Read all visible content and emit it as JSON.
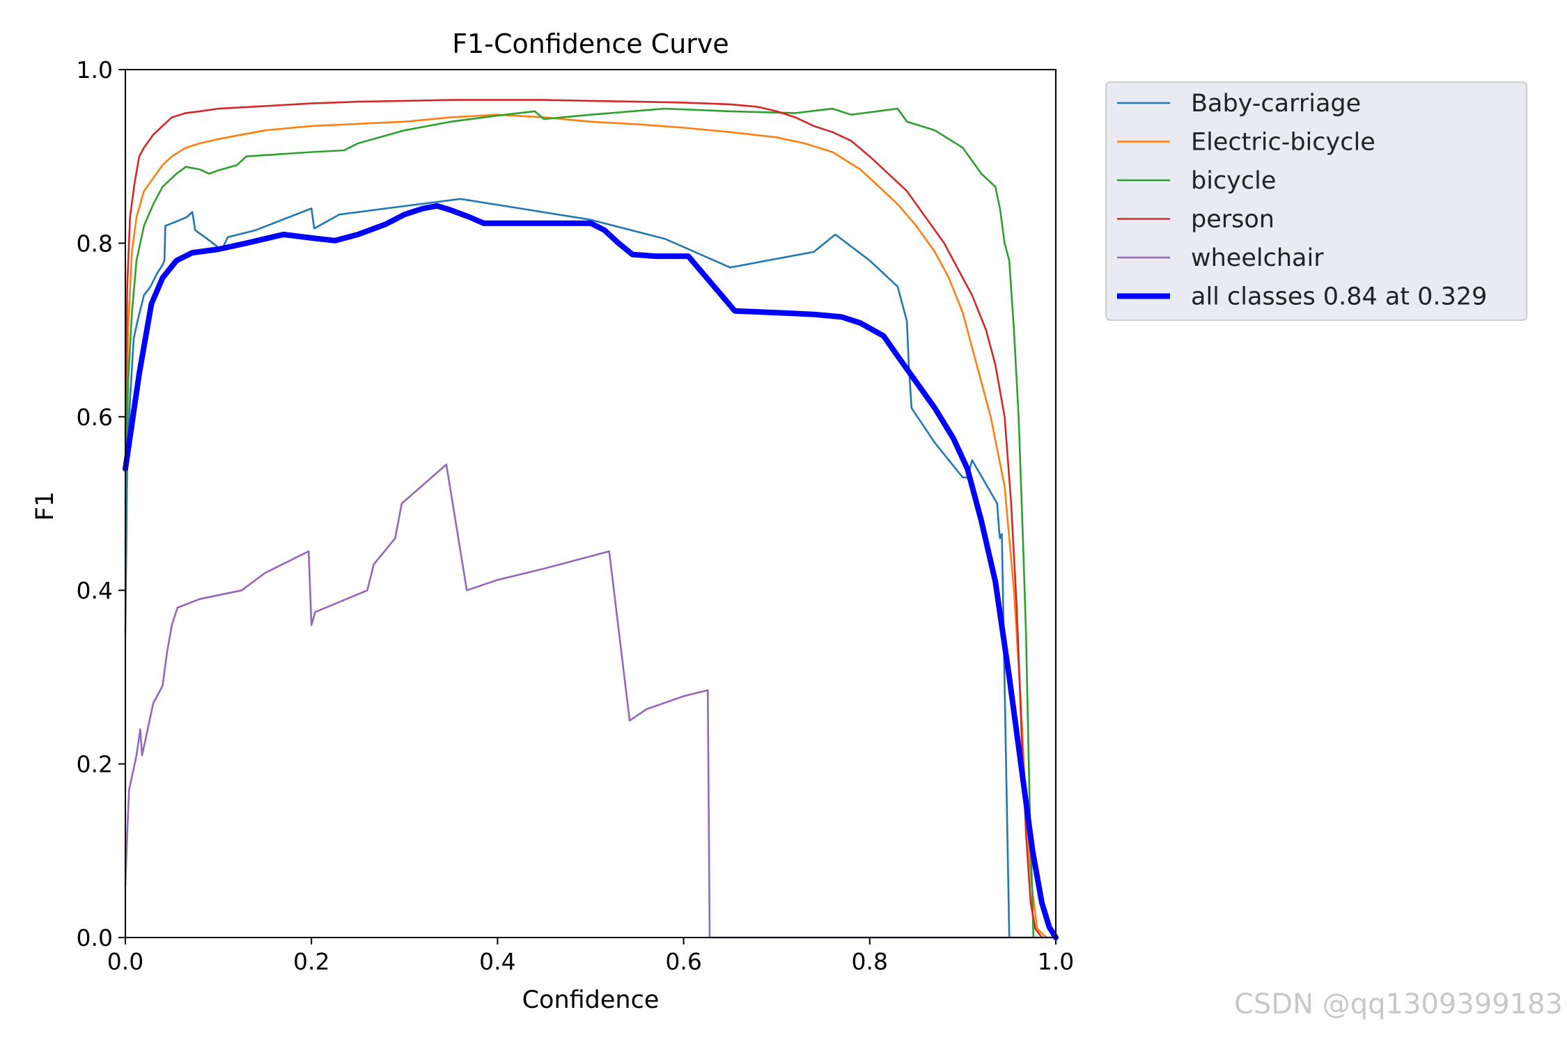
{
  "chart_data": {
    "type": "line",
    "title": "F1-Confidence Curve",
    "xlabel": "Confidence",
    "ylabel": "F1",
    "xlim": [
      0,
      1
    ],
    "ylim": [
      0,
      1
    ],
    "xticks": [
      0.0,
      0.2,
      0.4,
      0.6,
      0.8,
      1.0
    ],
    "yticks": [
      0.0,
      0.2,
      0.4,
      0.6,
      0.8,
      1.0
    ],
    "tick_labels_x": [
      "0.0",
      "0.2",
      "0.4",
      "0.6",
      "0.8",
      "1.0"
    ],
    "tick_labels_y": [
      "0.0",
      "0.2",
      "0.4",
      "0.6",
      "0.8",
      "1.0"
    ],
    "grid": false,
    "legend_position": "outside-top-right",
    "series": [
      {
        "name": "Baby-carriage",
        "color": "#1f77b4",
        "width": "thin",
        "points": [
          [
            0.0,
            0.35
          ],
          [
            0.002,
            0.55
          ],
          [
            0.005,
            0.62
          ],
          [
            0.009,
            0.69
          ],
          [
            0.013,
            0.71
          ],
          [
            0.02,
            0.74
          ],
          [
            0.027,
            0.75
          ],
          [
            0.034,
            0.765
          ],
          [
            0.04,
            0.775
          ],
          [
            0.042,
            0.78
          ],
          [
            0.043,
            0.82
          ],
          [
            0.055,
            0.825
          ],
          [
            0.066,
            0.83
          ],
          [
            0.072,
            0.836
          ],
          [
            0.075,
            0.815
          ],
          [
            0.088,
            0.805
          ],
          [
            0.1,
            0.795
          ],
          [
            0.104,
            0.793
          ],
          [
            0.11,
            0.807
          ],
          [
            0.14,
            0.815
          ],
          [
            0.2,
            0.84
          ],
          [
            0.203,
            0.817
          ],
          [
            0.23,
            0.833
          ],
          [
            0.28,
            0.84
          ],
          [
            0.36,
            0.851
          ],
          [
            0.5,
            0.827
          ],
          [
            0.58,
            0.805
          ],
          [
            0.65,
            0.772
          ],
          [
            0.74,
            0.79
          ],
          [
            0.763,
            0.81
          ],
          [
            0.8,
            0.78
          ],
          [
            0.83,
            0.75
          ],
          [
            0.84,
            0.71
          ],
          [
            0.842,
            0.66
          ],
          [
            0.845,
            0.61
          ],
          [
            0.87,
            0.57
          ],
          [
            0.9,
            0.53
          ],
          [
            0.905,
            0.53
          ],
          [
            0.91,
            0.55
          ],
          [
            0.937,
            0.5
          ],
          [
            0.939,
            0.47
          ],
          [
            0.94,
            0.46
          ],
          [
            0.942,
            0.465
          ],
          [
            0.95,
            0.0
          ]
        ]
      },
      {
        "name": "Electric-bicycle",
        "color": "#ff7f0e",
        "width": "thin",
        "points": [
          [
            0.0,
            0.55
          ],
          [
            0.003,
            0.7
          ],
          [
            0.007,
            0.79
          ],
          [
            0.012,
            0.83
          ],
          [
            0.02,
            0.86
          ],
          [
            0.03,
            0.875
          ],
          [
            0.04,
            0.89
          ],
          [
            0.05,
            0.9
          ],
          [
            0.065,
            0.91
          ],
          [
            0.08,
            0.915
          ],
          [
            0.1,
            0.92
          ],
          [
            0.15,
            0.93
          ],
          [
            0.2,
            0.935
          ],
          [
            0.3,
            0.94
          ],
          [
            0.35,
            0.945
          ],
          [
            0.4,
            0.948
          ],
          [
            0.45,
            0.945
          ],
          [
            0.5,
            0.94
          ],
          [
            0.55,
            0.937
          ],
          [
            0.6,
            0.933
          ],
          [
            0.65,
            0.928
          ],
          [
            0.7,
            0.922
          ],
          [
            0.73,
            0.915
          ],
          [
            0.76,
            0.905
          ],
          [
            0.79,
            0.885
          ],
          [
            0.81,
            0.865
          ],
          [
            0.83,
            0.845
          ],
          [
            0.85,
            0.82
          ],
          [
            0.87,
            0.79
          ],
          [
            0.885,
            0.76
          ],
          [
            0.9,
            0.72
          ],
          [
            0.915,
            0.66
          ],
          [
            0.93,
            0.6
          ],
          [
            0.945,
            0.52
          ],
          [
            0.955,
            0.4
          ],
          [
            0.962,
            0.28
          ],
          [
            0.968,
            0.15
          ],
          [
            0.974,
            0.06
          ],
          [
            0.98,
            0.01
          ],
          [
            0.99,
            0.0
          ]
        ]
      },
      {
        "name": "bicycle",
        "color": "#2ca02c",
        "width": "thin",
        "points": [
          [
            0.0,
            0.5
          ],
          [
            0.003,
            0.64
          ],
          [
            0.007,
            0.72
          ],
          [
            0.012,
            0.78
          ],
          [
            0.02,
            0.82
          ],
          [
            0.03,
            0.845
          ],
          [
            0.04,
            0.865
          ],
          [
            0.055,
            0.88
          ],
          [
            0.065,
            0.888
          ],
          [
            0.08,
            0.885
          ],
          [
            0.09,
            0.88
          ],
          [
            0.1,
            0.884
          ],
          [
            0.12,
            0.89
          ],
          [
            0.13,
            0.9
          ],
          [
            0.2,
            0.905
          ],
          [
            0.235,
            0.907
          ],
          [
            0.25,
            0.915
          ],
          [
            0.3,
            0.93
          ],
          [
            0.35,
            0.94
          ],
          [
            0.4,
            0.947
          ],
          [
            0.44,
            0.952
          ],
          [
            0.45,
            0.943
          ],
          [
            0.5,
            0.948
          ],
          [
            0.58,
            0.955
          ],
          [
            0.65,
            0.952
          ],
          [
            0.72,
            0.95
          ],
          [
            0.76,
            0.955
          ],
          [
            0.78,
            0.948
          ],
          [
            0.83,
            0.955
          ],
          [
            0.84,
            0.94
          ],
          [
            0.87,
            0.93
          ],
          [
            0.9,
            0.91
          ],
          [
            0.92,
            0.88
          ],
          [
            0.935,
            0.865
          ],
          [
            0.94,
            0.84
          ],
          [
            0.945,
            0.8
          ],
          [
            0.95,
            0.78
          ],
          [
            0.955,
            0.7
          ],
          [
            0.96,
            0.6
          ],
          [
            0.965,
            0.45
          ],
          [
            0.968,
            0.35
          ],
          [
            0.972,
            0.15
          ],
          [
            0.976,
            0.0
          ]
        ]
      },
      {
        "name": "person",
        "color": "#d62728",
        "width": "thin",
        "points": [
          [
            0.0,
            0.58
          ],
          [
            0.002,
            0.75
          ],
          [
            0.005,
            0.83
          ],
          [
            0.01,
            0.87
          ],
          [
            0.015,
            0.9
          ],
          [
            0.02,
            0.91
          ],
          [
            0.03,
            0.925
          ],
          [
            0.04,
            0.935
          ],
          [
            0.05,
            0.945
          ],
          [
            0.065,
            0.95
          ],
          [
            0.08,
            0.952
          ],
          [
            0.1,
            0.955
          ],
          [
            0.15,
            0.958
          ],
          [
            0.2,
            0.961
          ],
          [
            0.25,
            0.963
          ],
          [
            0.3,
            0.964
          ],
          [
            0.35,
            0.965
          ],
          [
            0.4,
            0.965
          ],
          [
            0.45,
            0.965
          ],
          [
            0.5,
            0.964
          ],
          [
            0.55,
            0.963
          ],
          [
            0.6,
            0.962
          ],
          [
            0.65,
            0.96
          ],
          [
            0.68,
            0.957
          ],
          [
            0.7,
            0.952
          ],
          [
            0.72,
            0.945
          ],
          [
            0.74,
            0.935
          ],
          [
            0.76,
            0.928
          ],
          [
            0.78,
            0.918
          ],
          [
            0.8,
            0.9
          ],
          [
            0.82,
            0.88
          ],
          [
            0.84,
            0.86
          ],
          [
            0.86,
            0.83
          ],
          [
            0.88,
            0.8
          ],
          [
            0.895,
            0.77
          ],
          [
            0.91,
            0.74
          ],
          [
            0.925,
            0.7
          ],
          [
            0.935,
            0.66
          ],
          [
            0.945,
            0.6
          ],
          [
            0.952,
            0.5
          ],
          [
            0.958,
            0.38
          ],
          [
            0.963,
            0.24
          ],
          [
            0.968,
            0.12
          ],
          [
            0.973,
            0.04
          ],
          [
            0.978,
            0.01
          ],
          [
            0.985,
            0.0
          ]
        ]
      },
      {
        "name": "wheelchair",
        "color": "#9467bd",
        "width": "thin",
        "points": [
          [
            0.0,
            0.06
          ],
          [
            0.002,
            0.12
          ],
          [
            0.004,
            0.17
          ],
          [
            0.008,
            0.19
          ],
          [
            0.012,
            0.21
          ],
          [
            0.016,
            0.24
          ],
          [
            0.018,
            0.21
          ],
          [
            0.022,
            0.23
          ],
          [
            0.026,
            0.25
          ],
          [
            0.03,
            0.27
          ],
          [
            0.035,
            0.28
          ],
          [
            0.04,
            0.29
          ],
          [
            0.045,
            0.33
          ],
          [
            0.05,
            0.36
          ],
          [
            0.056,
            0.38
          ],
          [
            0.08,
            0.39
          ],
          [
            0.125,
            0.4
          ],
          [
            0.15,
            0.42
          ],
          [
            0.197,
            0.445
          ],
          [
            0.2,
            0.36
          ],
          [
            0.204,
            0.375
          ],
          [
            0.26,
            0.4
          ],
          [
            0.267,
            0.43
          ],
          [
            0.29,
            0.46
          ],
          [
            0.297,
            0.5
          ],
          [
            0.345,
            0.545
          ],
          [
            0.367,
            0.4
          ],
          [
            0.4,
            0.412
          ],
          [
            0.45,
            0.425
          ],
          [
            0.52,
            0.445
          ],
          [
            0.542,
            0.25
          ],
          [
            0.56,
            0.263
          ],
          [
            0.6,
            0.278
          ],
          [
            0.626,
            0.285
          ],
          [
            0.628,
            0.0
          ],
          [
            1.0,
            0.0
          ]
        ]
      },
      {
        "name": "all classes 0.84 at 0.329",
        "color": "#0000ff",
        "width": "thick",
        "points": [
          [
            0.0,
            0.54
          ],
          [
            0.015,
            0.65
          ],
          [
            0.028,
            0.73
          ],
          [
            0.04,
            0.76
          ],
          [
            0.055,
            0.78
          ],
          [
            0.072,
            0.789
          ],
          [
            0.1,
            0.793
          ],
          [
            0.13,
            0.8
          ],
          [
            0.17,
            0.81
          ],
          [
            0.2,
            0.806
          ],
          [
            0.225,
            0.803
          ],
          [
            0.25,
            0.81
          ],
          [
            0.28,
            0.822
          ],
          [
            0.3,
            0.833
          ],
          [
            0.32,
            0.84
          ],
          [
            0.335,
            0.843
          ],
          [
            0.35,
            0.838
          ],
          [
            0.37,
            0.83
          ],
          [
            0.385,
            0.823
          ],
          [
            0.42,
            0.823
          ],
          [
            0.5,
            0.823
          ],
          [
            0.515,
            0.815
          ],
          [
            0.53,
            0.8
          ],
          [
            0.545,
            0.787
          ],
          [
            0.57,
            0.785
          ],
          [
            0.605,
            0.785
          ],
          [
            0.655,
            0.722
          ],
          [
            0.7,
            0.72
          ],
          [
            0.74,
            0.718
          ],
          [
            0.77,
            0.715
          ],
          [
            0.79,
            0.708
          ],
          [
            0.815,
            0.693
          ],
          [
            0.83,
            0.67
          ],
          [
            0.85,
            0.64
          ],
          [
            0.87,
            0.61
          ],
          [
            0.89,
            0.575
          ],
          [
            0.905,
            0.54
          ],
          [
            0.92,
            0.48
          ],
          [
            0.935,
            0.41
          ],
          [
            0.95,
            0.3
          ],
          [
            0.965,
            0.18
          ],
          [
            0.975,
            0.1
          ],
          [
            0.985,
            0.04
          ],
          [
            0.993,
            0.012
          ],
          [
            1.0,
            0.0
          ]
        ]
      }
    ]
  },
  "watermark": "CSDN @qq1309399183"
}
